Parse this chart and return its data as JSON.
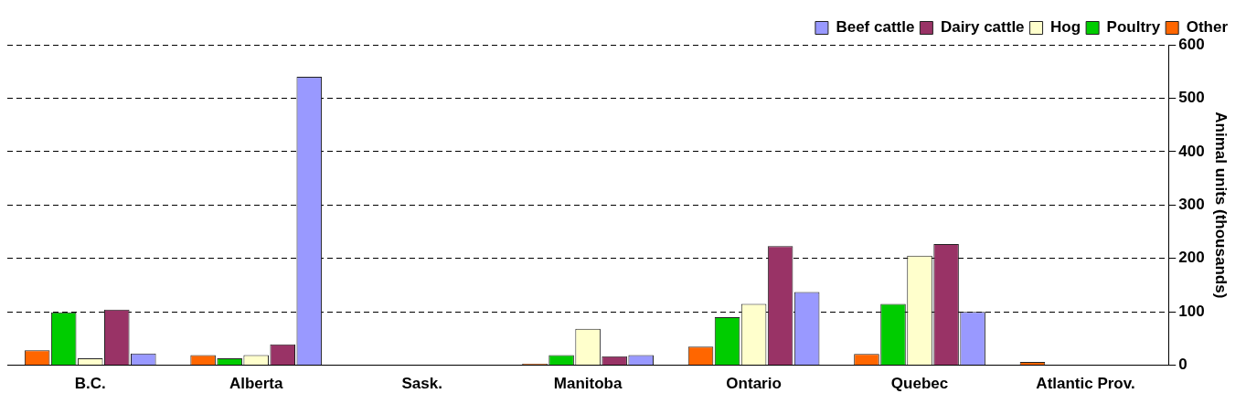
{
  "chart_data": {
    "type": "bar",
    "ylabel": "Animal units (thousands)",
    "categories": [
      "B.C.",
      "Alberta",
      "Sask.",
      "Manitoba",
      "Ontario",
      "Quebec",
      "Atlantic Prov."
    ],
    "series": [
      {
        "name": "Other",
        "color": "#ff6600",
        "values": [
          28,
          19,
          0,
          3,
          35,
          21,
          6
        ]
      },
      {
        "name": "Poultry",
        "color": "#00cc00",
        "values": [
          99,
          13,
          0,
          19,
          90,
          115,
          0
        ]
      },
      {
        "name": "Hog",
        "color": "#ffffcc",
        "values": [
          13,
          19,
          0,
          68,
          115,
          205,
          0
        ]
      },
      {
        "name": "Dairy cattle",
        "color": "#993366",
        "values": [
          104,
          39,
          0,
          17,
          223,
          227,
          0
        ]
      },
      {
        "name": "Beef cattle",
        "color": "#9999ff",
        "values": [
          22,
          540,
          0,
          19,
          137,
          100,
          0
        ]
      }
    ],
    "ylim": [
      0,
      600
    ],
    "yticks": [
      0,
      100,
      200,
      300,
      400,
      500,
      600
    ],
    "grid": "y",
    "legend": "top right"
  }
}
